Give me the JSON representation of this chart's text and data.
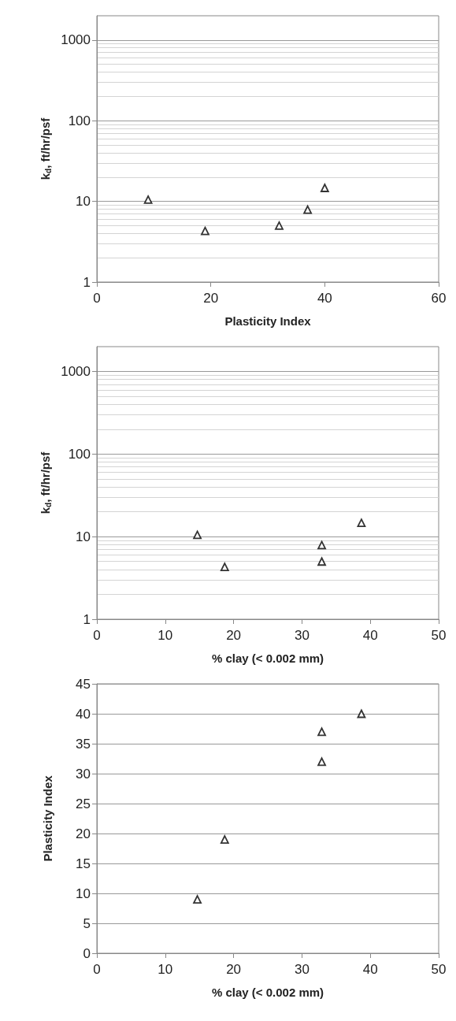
{
  "chart_data": [
    {
      "type": "scatter",
      "xlabel": "Plasticity Index",
      "ylabel": "k$_{d}$, ft/hr/psf",
      "x": [
        9,
        19,
        32,
        37,
        40
      ],
      "series": [
        {
          "color": "#000000",
          "values": [
            10.5,
            4.3,
            5,
            7.9,
            14.7
          ]
        }
      ],
      "xlim": [
        0,
        60
      ],
      "xticks": [
        0,
        20,
        40,
        60
      ],
      "ylim": [
        1,
        2000
      ],
      "yticks": [
        1,
        10,
        100,
        1000
      ],
      "log": "y",
      "grid": "y",
      "marker": "triangle"
    },
    {
      "type": "scatter",
      "xlabel": "% clay (< 0.002 mm)",
      "ylabel": "k$_{d}$, ft/hr/psf",
      "x": [
        14.7,
        18.7,
        32.9,
        32.9,
        38.7
      ],
      "series": [
        {
          "color": "#000000",
          "values": [
            10.5,
            4.3,
            7.9,
            5,
            14.7
          ]
        }
      ],
      "xlim": [
        0,
        50
      ],
      "xticks": [
        0,
        10,
        20,
        30,
        40,
        50
      ],
      "ylim": [
        1,
        2000
      ],
      "yticks": [
        1,
        10,
        100,
        1000
      ],
      "log": "y",
      "grid": "y",
      "marker": "triangle"
    },
    {
      "type": "scatter",
      "xlabel": "% clay (< 0.002 mm)",
      "ylabel": "Plasticity Index",
      "x": [
        14.7,
        18.7,
        32.9,
        32.9,
        38.7
      ],
      "series": [
        {
          "color": "#000000",
          "values": [
            9,
            19,
            37,
            32,
            40
          ]
        }
      ],
      "xlim": [
        0,
        50
      ],
      "xticks": [
        0,
        10,
        20,
        30,
        40,
        50
      ],
      "ylim": [
        0,
        45
      ],
      "yticks": [
        0,
        5,
        10,
        15,
        20,
        25,
        30,
        35,
        40,
        45
      ],
      "grid": "y",
      "marker": "triangle"
    }
  ]
}
